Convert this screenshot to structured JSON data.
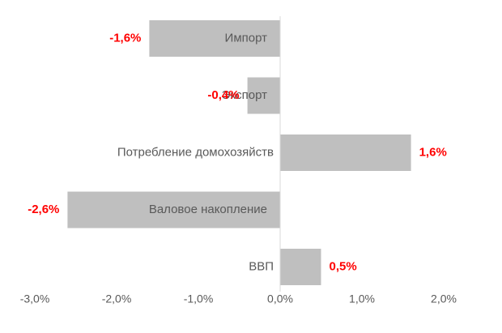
{
  "chart_data": {
    "type": "bar",
    "orientation": "horizontal",
    "categories": [
      "Импорт",
      "Экспорт",
      "Потребление домохозяйств",
      "Валовое накопление",
      "ВВП"
    ],
    "values": [
      -1.6,
      -0.4,
      1.6,
      -2.6,
      0.5
    ],
    "value_labels": [
      "-1,6%",
      "-0,4%",
      "1,6%",
      "-2,6%",
      "0,5%"
    ],
    "xlim": [
      -3.0,
      2.0
    ],
    "x_ticks": [
      -3.0,
      -2.0,
      -1.0,
      0.0,
      1.0,
      2.0
    ],
    "x_tick_labels": [
      "-3,0%",
      "-2,0%",
      "-1,0%",
      "0,0%",
      "1,0%",
      "2,0%"
    ],
    "grid": false,
    "legend": "none",
    "bar_color": "#bfbfbf",
    "label_color": "#ff0000",
    "axis_color": "#d9d9d9"
  }
}
